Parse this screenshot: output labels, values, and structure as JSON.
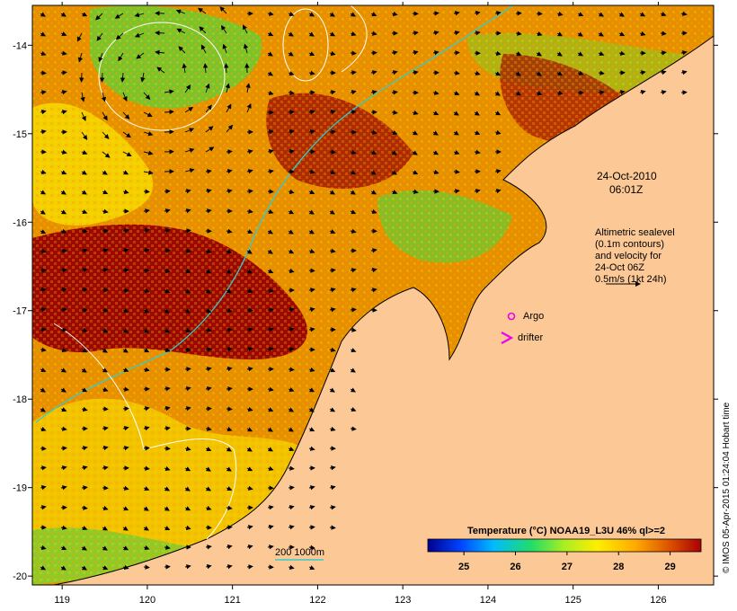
{
  "map": {
    "land_color": "#fcc996",
    "frame_color": "#000000",
    "x_ticks": [
      "119",
      "120",
      "121",
      "122",
      "123",
      "124",
      "125",
      "126"
    ],
    "y_ticks": [
      "-14",
      "-15",
      "-16",
      "-17",
      "-18",
      "-19",
      "-20"
    ],
    "lon_range": [
      118.65,
      126.65
    ],
    "lat_range": [
      -13.55,
      -20.1
    ]
  },
  "date_label": {
    "date": "24-Oct-2010",
    "time": "06:01Z"
  },
  "altimetry_note": {
    "lines": [
      "Altimetric sealevel",
      "(0.1m contours)",
      "and velocity for",
      "24-Oct 06Z",
      "0.5m/s (1kt 24h)"
    ],
    "arrow_icon": "velocity-scale-arrow-icon"
  },
  "markers": {
    "argo_label": "Argo",
    "argo_color": "#ee00ee",
    "drifter_label": "drifter",
    "drifter_color": "#ee00ee"
  },
  "depth_legend": {
    "label": "200  1000m",
    "color": "#33cccc"
  },
  "colorbar": {
    "title": "Temperature (°C) NOAA19_L3U 46% ql>=2",
    "ticks": [
      "25",
      "26",
      "27",
      "28",
      "29"
    ],
    "range": [
      24.3,
      29.6
    ],
    "stops": [
      "#00008f",
      "#0044ff",
      "#00bbff",
      "#22dd66",
      "#aaee22",
      "#ffee00",
      "#ffaa00",
      "#dd5500",
      "#aa0000"
    ]
  },
  "credit": "© IMOS 05-Apr-2015 01:24:04 Hobart time"
}
